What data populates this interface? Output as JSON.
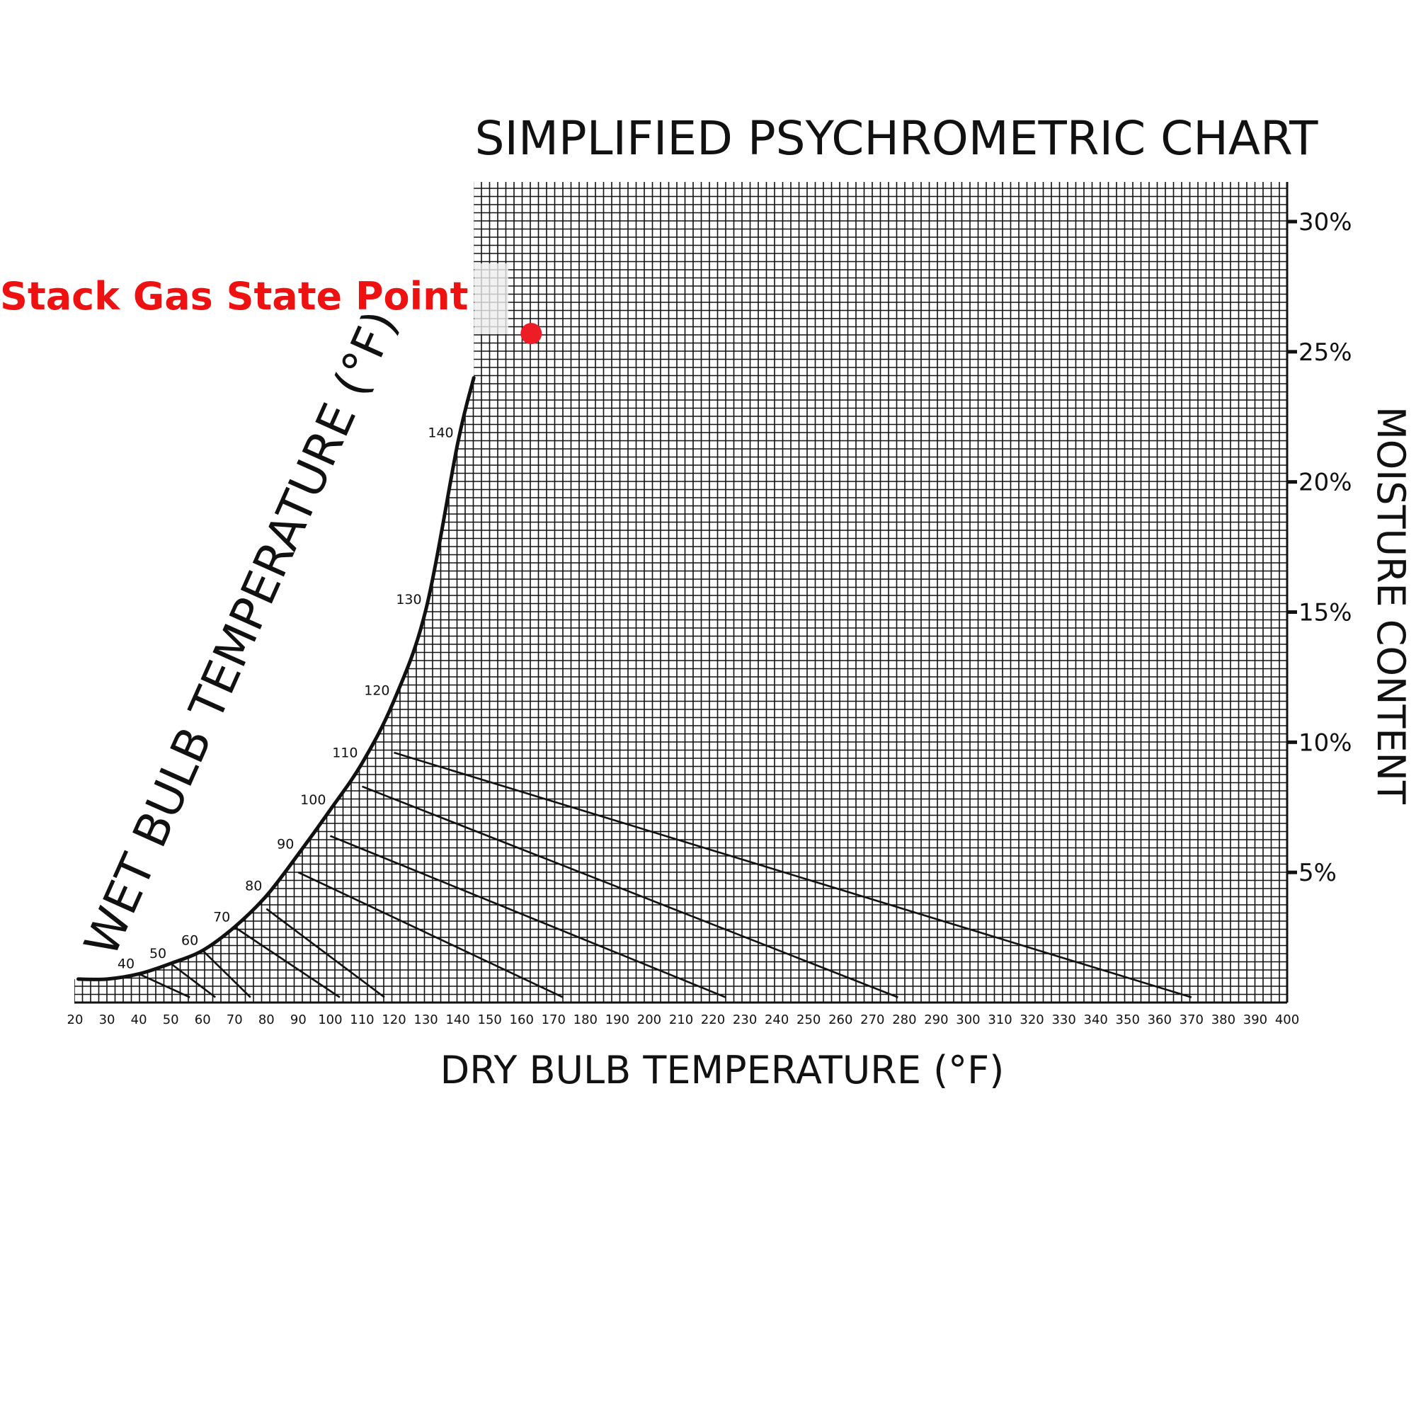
{
  "chart_data": {
    "type": "scatter",
    "title": "SIMPLIFIED PSYCHROMETRIC CHART",
    "xlabel": "DRY BULB TEMPERATURE (°F)",
    "ylabel": "MOISTURE CONTENT",
    "curve_label": "WET BULB TEMPERATURE (°F)",
    "xlim": [
      20,
      400
    ],
    "x_ticks": [
      "20",
      "30",
      "40",
      "50",
      "60",
      "70",
      "80",
      "90",
      "100",
      "110",
      "120",
      "130",
      "140",
      "150",
      "160",
      "170",
      "180",
      "190",
      "200",
      "210",
      "220",
      "230",
      "240",
      "250",
      "260",
      "270",
      "280",
      "290",
      "300",
      "310",
      "320",
      "330",
      "340",
      "350",
      "360",
      "370",
      "380",
      "390",
      "400"
    ],
    "y_ticks": [
      {
        "value": 30,
        "label": "30%"
      },
      {
        "value": 25,
        "label": "25%"
      },
      {
        "value": 20,
        "label": "20%"
      },
      {
        "value": 15,
        "label": "15%"
      },
      {
        "value": 10,
        "label": "10%"
      },
      {
        "value": 5,
        "label": "5%"
      }
    ],
    "grid": true,
    "saturation_curve": {
      "name": "",
      "x": [
        21,
        30,
        40,
        50,
        60,
        70,
        80,
        90,
        100,
        110,
        120,
        130,
        140,
        145
      ],
      "y": [
        0.9,
        0.9,
        1.1,
        1.5,
        2.0,
        2.9,
        4.1,
        5.7,
        7.4,
        9.2,
        11.6,
        15.1,
        21.5,
        24.0
      ]
    },
    "wet_bulb_labels": [
      {
        "label": "40",
        "x": 40,
        "y": 1.1
      },
      {
        "label": "50",
        "x": 50,
        "y": 1.5
      },
      {
        "label": "60",
        "x": 60,
        "y": 2.0
      },
      {
        "label": "70",
        "x": 70,
        "y": 2.9
      },
      {
        "label": "80",
        "x": 80,
        "y": 4.1
      },
      {
        "label": "90",
        "x": 90,
        "y": 5.7
      },
      {
        "label": "100",
        "x": 100,
        "y": 7.4
      },
      {
        "label": "110",
        "x": 110,
        "y": 9.2
      },
      {
        "label": "120",
        "x": 120,
        "y": 11.6
      },
      {
        "label": "130",
        "x": 130,
        "y": 15.1
      },
      {
        "label": "140",
        "x": 140,
        "y": 21.5
      }
    ],
    "wet_bulb_lines": [
      {
        "wb": 40,
        "x": [
          40,
          56
        ],
        "y": [
          1.1,
          0.2
        ]
      },
      {
        "wb": 50,
        "x": [
          50,
          64
        ],
        "y": [
          1.5,
          0.2
        ]
      },
      {
        "wb": 60,
        "x": [
          60,
          75
        ],
        "y": [
          2.0,
          0.2
        ]
      },
      {
        "wb": 70,
        "x": [
          70,
          103
        ],
        "y": [
          2.9,
          0.2
        ]
      },
      {
        "wb": 80,
        "x": [
          80,
          117
        ],
        "y": [
          3.6,
          0.2
        ]
      },
      {
        "wb": 90,
        "x": [
          90,
          173
        ],
        "y": [
          5.0,
          0.2
        ]
      },
      {
        "wb": 100,
        "x": [
          100,
          224
        ],
        "y": [
          6.4,
          0.2
        ]
      },
      {
        "wb": 110,
        "x": [
          110,
          278
        ],
        "y": [
          8.3,
          0.2
        ]
      },
      {
        "wb": 120,
        "x": [
          120,
          370
        ],
        "y": [
          9.6,
          0.2
        ]
      }
    ],
    "points": [
      {
        "name": "Stack Gas State Point",
        "x": 163,
        "y": 25.7
      }
    ],
    "annotation": "Stack Gas State Point",
    "colors": {
      "grid": "#111111",
      "curve": "#111111",
      "point": "#ee1c24",
      "annotation": "#ee1111"
    }
  }
}
